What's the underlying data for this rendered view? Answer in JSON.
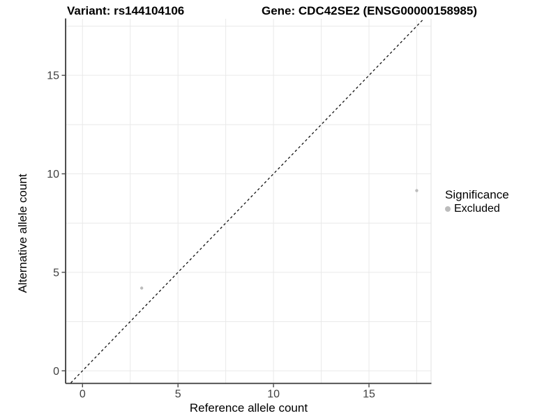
{
  "chart_data": {
    "type": "scatter",
    "title_left": "Variant: rs144104106",
    "title_right": "Gene: CDC42SE2 (ENSG00000158985)",
    "xlabel": "Reference allele count",
    "ylabel": "Alternative allele count",
    "x_ticks": [
      0,
      5,
      10,
      15
    ],
    "y_ticks": [
      0,
      5,
      10,
      15
    ],
    "grid_step": 2.5,
    "grid": true,
    "xlim": [
      -0.85,
      18.25
    ],
    "ylim": [
      -0.61,
      17.87
    ],
    "identity_line": {
      "slope": 1,
      "intercept": 0,
      "style": "dashed",
      "color": "#111111"
    },
    "series": [
      {
        "name": "Excluded",
        "color": "#bcbcbc",
        "points": [
          {
            "x": 3.1,
            "y": 4.2
          },
          {
            "x": 17.5,
            "y": 9.15
          }
        ]
      }
    ],
    "legend": {
      "title": "Significance",
      "position": "right",
      "entries": [
        {
          "label": "Excluded",
          "color": "#bcbcbc"
        }
      ]
    },
    "colors": {
      "grid": "#e9e9e9",
      "axis_line": "#3a3a3a",
      "tick_label": "#404040",
      "panel_right_border": "#e2e2e2"
    }
  }
}
